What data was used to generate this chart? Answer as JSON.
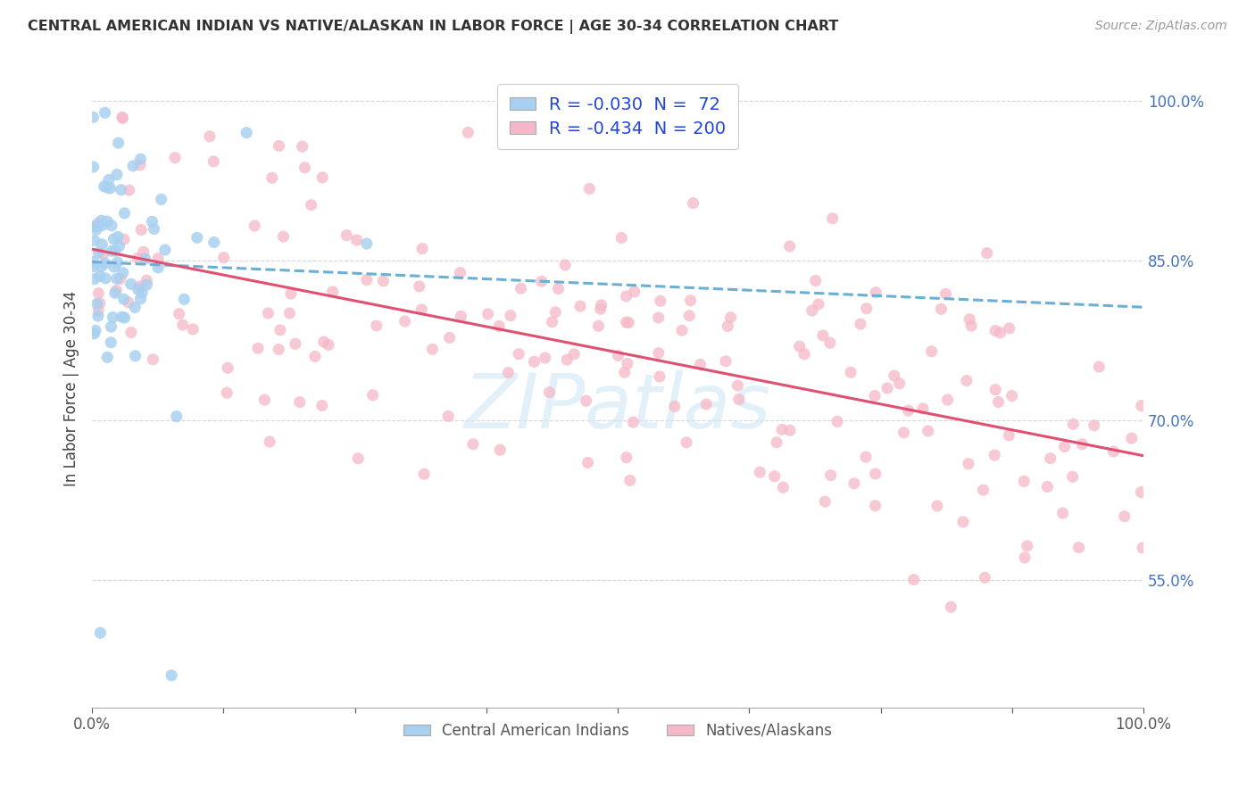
{
  "title": "CENTRAL AMERICAN INDIAN VS NATIVE/ALASKAN IN LABOR FORCE | AGE 30-34 CORRELATION CHART",
  "source_text": "Source: ZipAtlas.com",
  "ylabel": "In Labor Force | Age 30-34",
  "legend_label_blue": "Central American Indians",
  "legend_label_pink": "Natives/Alaskans",
  "R_blue": -0.03,
  "N_blue": 72,
  "R_pink": -0.434,
  "N_pink": 200,
  "color_blue": "#a8d0f0",
  "color_pink": "#f5b8c8",
  "line_blue": "#6aafd6",
  "line_pink": "#e05070",
  "background_color": "#ffffff",
  "title_color": "#333333",
  "source_color": "#999999",
  "ytick_color": "#4472C4",
  "xtick_color": "#555555",
  "xlim": [
    0.0,
    1.0
  ],
  "ylim": [
    0.43,
    1.03
  ],
  "yticks": [
    0.55,
    0.7,
    0.85,
    1.0
  ],
  "ytick_labels": [
    "55.0%",
    "70.0%",
    "85.0%",
    "100.0%"
  ],
  "xtick_labels": [
    "0.0%",
    "100.0%"
  ],
  "watermark": "ZIPatlas",
  "watermark_color": "#d0e8f5"
}
